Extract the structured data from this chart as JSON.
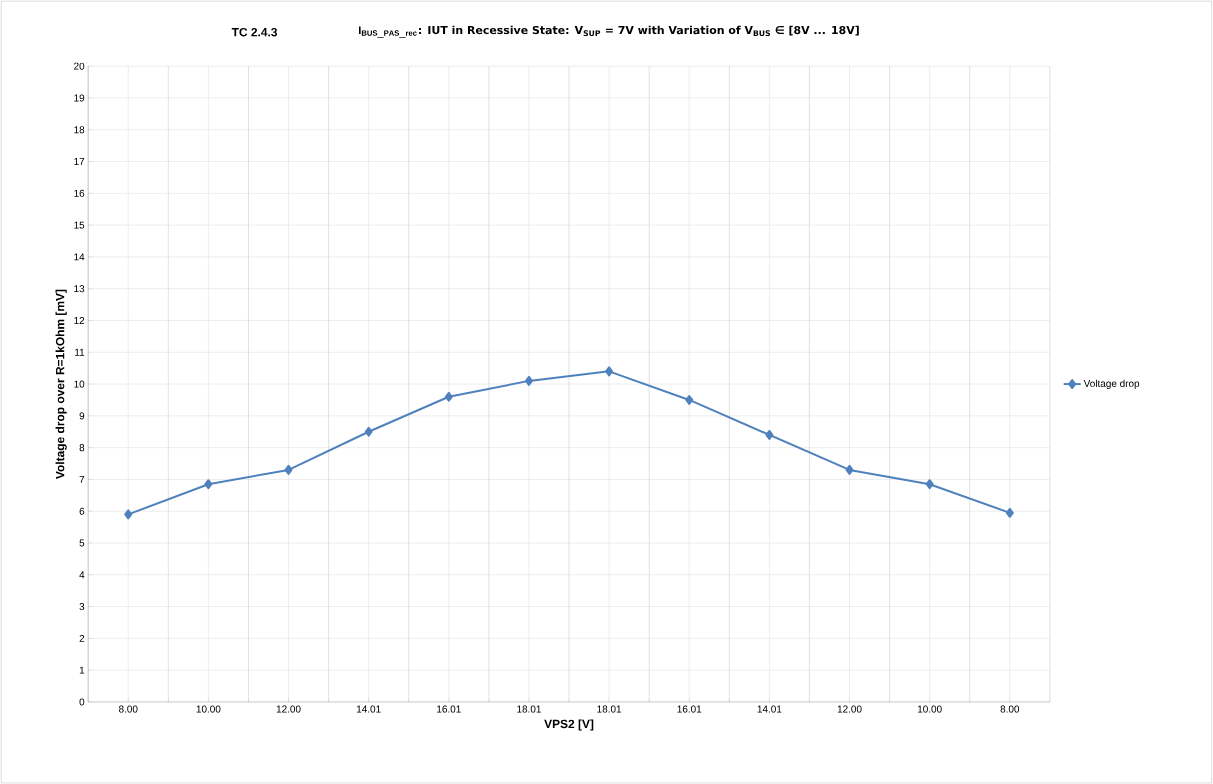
{
  "chart_data": {
    "type": "line",
    "title": "TC 2.4.3",
    "annotations": [
      "\\mathbf{I_{BUS\\_PAS\\_rec}}"
    ],
    "subtitle": ": IUT in Recessive State: V$_{SUP}$ = 7V with Variation of V$_{BUS}$ ∈ [8V ... 18V]",
    "xlabel": "VPS2 [V]",
    "ylabel": "Voltage drop over R=1kOhm [mV]",
    "categories": [
      "8.00",
      "10.00",
      "12.00",
      "14.01",
      "16.01",
      "18.01",
      "18.01",
      "16.01",
      "14.01",
      "12.00",
      "10.00",
      "8.00"
    ],
    "series": [
      {
        "name": "Voltage drop",
        "color": "#4f81bd",
        "values": [
          5.9,
          6.85,
          7.3,
          8.5,
          9.6,
          10.1,
          10.4,
          9.5,
          8.4,
          7.3,
          6.85,
          5.95
        ]
      }
    ],
    "ylim": [
      0,
      20
    ],
    "yticks": [
      0,
      1,
      2,
      3,
      4,
      5,
      6,
      7,
      8,
      9,
      10,
      11,
      12,
      13,
      14,
      15,
      16,
      17,
      18,
      19,
      20
    ],
    "grid": true,
    "legend": "right",
    "marker": "diamond",
    "line_style": "solid"
  }
}
